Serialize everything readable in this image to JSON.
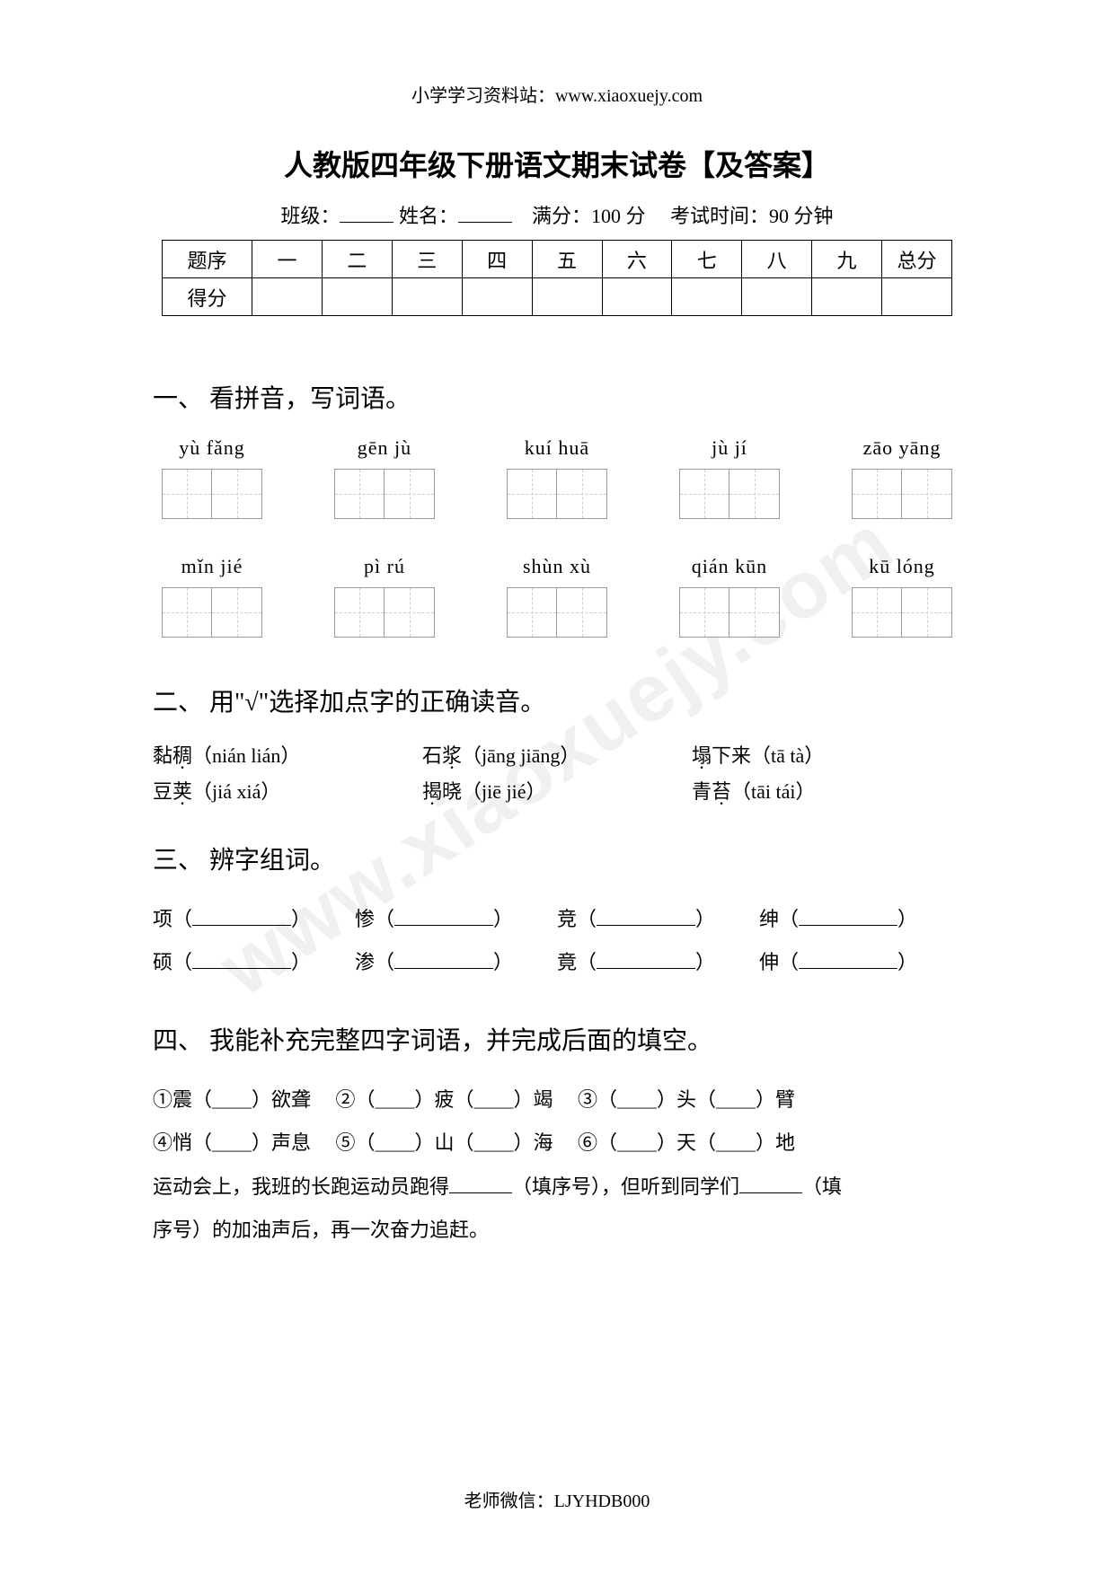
{
  "header": {
    "url_line": "小学学习资料站：www.xiaoxuejy.com"
  },
  "title": "人教版四年级下册语文期末试卷【及答案】",
  "info": {
    "class_label": "班级：",
    "name_label": "姓名：",
    "full_label": "满分：",
    "full_value": "100 分",
    "time_label": "考试时间：",
    "time_value": "90 分钟"
  },
  "score_table": {
    "row_header_1": "题序",
    "row_header_2": "得分",
    "columns": [
      "一",
      "二",
      "三",
      "四",
      "五",
      "六",
      "七",
      "八",
      "九",
      "总分"
    ]
  },
  "section1": {
    "heading": "一、 看拼音，写词语。",
    "row1": [
      "yù   fǎng",
      "gēn  jù",
      "kuí  huā",
      "jù    jí",
      "zāo   yāng"
    ],
    "row2": [
      "mǐn  jié",
      "pì  rú",
      "shùn   xù",
      "qián kūn",
      "kū lóng"
    ]
  },
  "section2": {
    "heading": "二、 用\"√\"选择加点字的正确读音。",
    "items": [
      {
        "word_pre": "黏",
        "word_dot": "稠",
        "reading": "（nián lián）"
      },
      {
        "word_pre": "石",
        "word_dot": "浆",
        "reading": "（jāng jiāng）"
      },
      {
        "word_pre": "",
        "word_dot": "塌",
        "word_post": "下来",
        "reading": "（tā tà）"
      },
      {
        "word_pre": "豆",
        "word_dot": "荚",
        "reading": "（jiá xiá）"
      },
      {
        "word_pre": "",
        "word_dot": "揭",
        "word_post": "晓",
        "reading": "（jiē jié）"
      },
      {
        "word_pre": "青",
        "word_dot": "苔",
        "reading": "（tāi tái）"
      }
    ]
  },
  "section3": {
    "heading": "三、 辨字组词。",
    "rows": [
      [
        "项",
        "惨",
        "竞",
        "绅"
      ],
      [
        "硕",
        "渗",
        "竟",
        "伸"
      ]
    ]
  },
  "section4": {
    "heading": "四、 我能补充完整四字词语，并完成后面的填空。",
    "items": [
      "①震（＿＿）欲聋",
      "②（＿＿）疲（＿＿）竭",
      "③（＿＿）头（＿＿）臂",
      "④悄（＿＿）声息",
      "⑤（＿＿）山（＿＿）海",
      "⑥（＿＿）天（＿＿）地"
    ],
    "sentence_pre": "运动会上，我班的长跑运动员跑得",
    "sentence_mid1": "（填序号），但听到同学们",
    "sentence_mid2": "（填",
    "sentence_end": "序号）的加油声后，再一次奋力追赶。"
  },
  "footer": {
    "wechat": "老师微信：LJYHDB000"
  },
  "watermark": "www.xiaoxuejy.com"
}
